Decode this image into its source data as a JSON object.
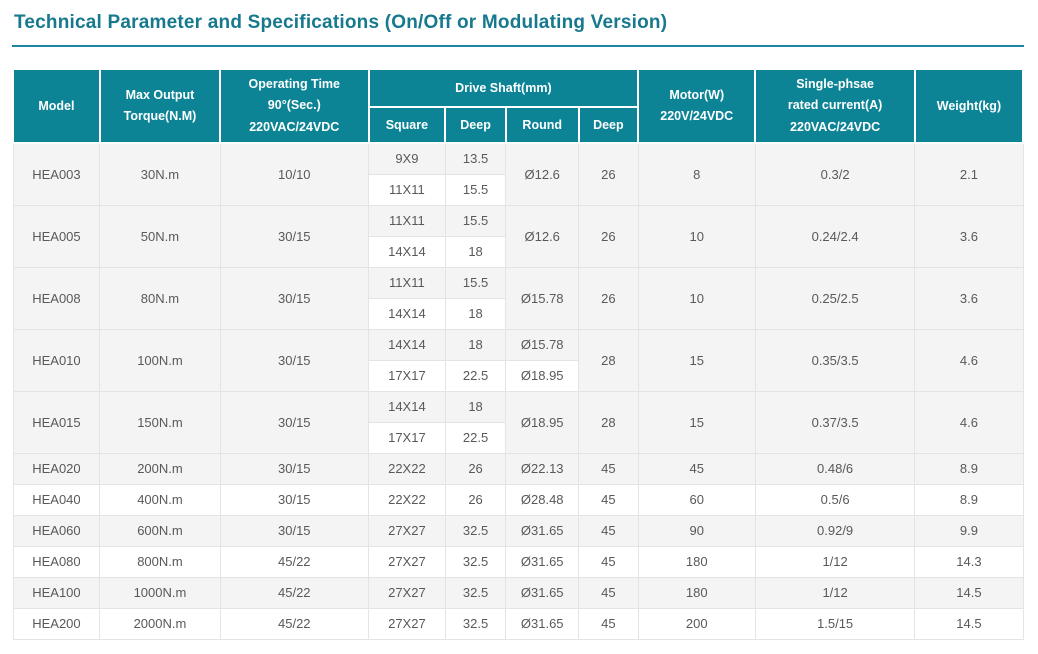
{
  "title": "Technical Parameter and Specifications (On/Off or Modulating Version)",
  "colors": {
    "header_bg": "#0d8496",
    "title": "#17798d",
    "stripe": "#f4f4f4",
    "border": "#e4e4e4",
    "text": "#595959"
  },
  "table": {
    "headers": {
      "model": "Model",
      "max_output_torque": [
        "Max Output",
        "Torque(N.M)"
      ],
      "operating_time": [
        "Operating Time",
        "90°(Sec.)",
        "220VAC/24VDC"
      ],
      "drive_shaft": "Drive Shaft(mm)",
      "square": "Square",
      "deep": "Deep",
      "round": "Round",
      "deep2": "Deep",
      "motor": [
        "Motor(W)",
        "220V/24VDC"
      ],
      "rated_current": [
        "Single-phsae",
        "rated current(A)",
        "220VAC/24VDC"
      ],
      "weight": "Weight(kg)"
    },
    "rows": [
      {
        "model": "HEA003",
        "torque": "30N.m",
        "time": "10/10",
        "shaft": [
          {
            "square": "9X9",
            "deep": "13.5"
          },
          {
            "square": "11X11",
            "deep": "15.5"
          }
        ],
        "round": [
          "Ø12.6"
        ],
        "round_deep": "26",
        "motor": "8",
        "current": "0.3/2",
        "weight": "2.1"
      },
      {
        "model": "HEA005",
        "torque": "50N.m",
        "time": "30/15",
        "shaft": [
          {
            "square": "11X11",
            "deep": "15.5"
          },
          {
            "square": "14X14",
            "deep": "18"
          }
        ],
        "round": [
          "Ø12.6"
        ],
        "round_deep": "26",
        "motor": "10",
        "current": "0.24/2.4",
        "weight": "3.6"
      },
      {
        "model": "HEA008",
        "torque": "80N.m",
        "time": "30/15",
        "shaft": [
          {
            "square": "11X11",
            "deep": "15.5"
          },
          {
            "square": "14X14",
            "deep": "18"
          }
        ],
        "round": [
          "Ø15.78"
        ],
        "round_deep": "26",
        "motor": "10",
        "current": "0.25/2.5",
        "weight": "3.6"
      },
      {
        "model": "HEA010",
        "torque": "100N.m",
        "time": "30/15",
        "shaft": [
          {
            "square": "14X14",
            "deep": "18"
          },
          {
            "square": "17X17",
            "deep": "22.5"
          }
        ],
        "round": [
          "Ø15.78",
          "Ø18.95"
        ],
        "round_deep": "28",
        "motor": "15",
        "current": "0.35/3.5",
        "weight": "4.6"
      },
      {
        "model": "HEA015",
        "torque": "150N.m",
        "time": "30/15",
        "shaft": [
          {
            "square": "14X14",
            "deep": "18"
          },
          {
            "square": "17X17",
            "deep": "22.5"
          }
        ],
        "round": [
          "Ø18.95"
        ],
        "round_deep": "28",
        "motor": "15",
        "current": "0.37/3.5",
        "weight": "4.6"
      },
      {
        "model": "HEA020",
        "torque": "200N.m",
        "time": "30/15",
        "shaft": [
          {
            "square": "22X22",
            "deep": "26"
          }
        ],
        "round": [
          "Ø22.13"
        ],
        "round_deep": "45",
        "motor": "45",
        "current": "0.48/6",
        "weight": "8.9"
      },
      {
        "model": "HEA040",
        "torque": "400N.m",
        "time": "30/15",
        "shaft": [
          {
            "square": "22X22",
            "deep": "26"
          }
        ],
        "round": [
          "Ø28.48"
        ],
        "round_deep": "45",
        "motor": "60",
        "current": "0.5/6",
        "weight": "8.9"
      },
      {
        "model": "HEA060",
        "torque": "600N.m",
        "time": "30/15",
        "shaft": [
          {
            "square": "27X27",
            "deep": "32.5"
          }
        ],
        "round": [
          "Ø31.65"
        ],
        "round_deep": "45",
        "motor": "90",
        "current": "0.92/9",
        "weight": "9.9"
      },
      {
        "model": "HEA080",
        "torque": "800N.m",
        "time": "45/22",
        "shaft": [
          {
            "square": "27X27",
            "deep": "32.5"
          }
        ],
        "round": [
          "Ø31.65"
        ],
        "round_deep": "45",
        "motor": "180",
        "current": "1/12",
        "weight": "14.3"
      },
      {
        "model": "HEA100",
        "torque": "1000N.m",
        "time": "45/22",
        "shaft": [
          {
            "square": "27X27",
            "deep": "32.5"
          }
        ],
        "round": [
          "Ø31.65"
        ],
        "round_deep": "45",
        "motor": "180",
        "current": "1/12",
        "weight": "14.5"
      },
      {
        "model": "HEA200",
        "torque": "2000N.m",
        "time": "45/22",
        "shaft": [
          {
            "square": "27X27",
            "deep": "32.5"
          }
        ],
        "round": [
          "Ø31.65"
        ],
        "round_deep": "45",
        "motor": "200",
        "current": "1.5/15",
        "weight": "14.5"
      }
    ]
  }
}
